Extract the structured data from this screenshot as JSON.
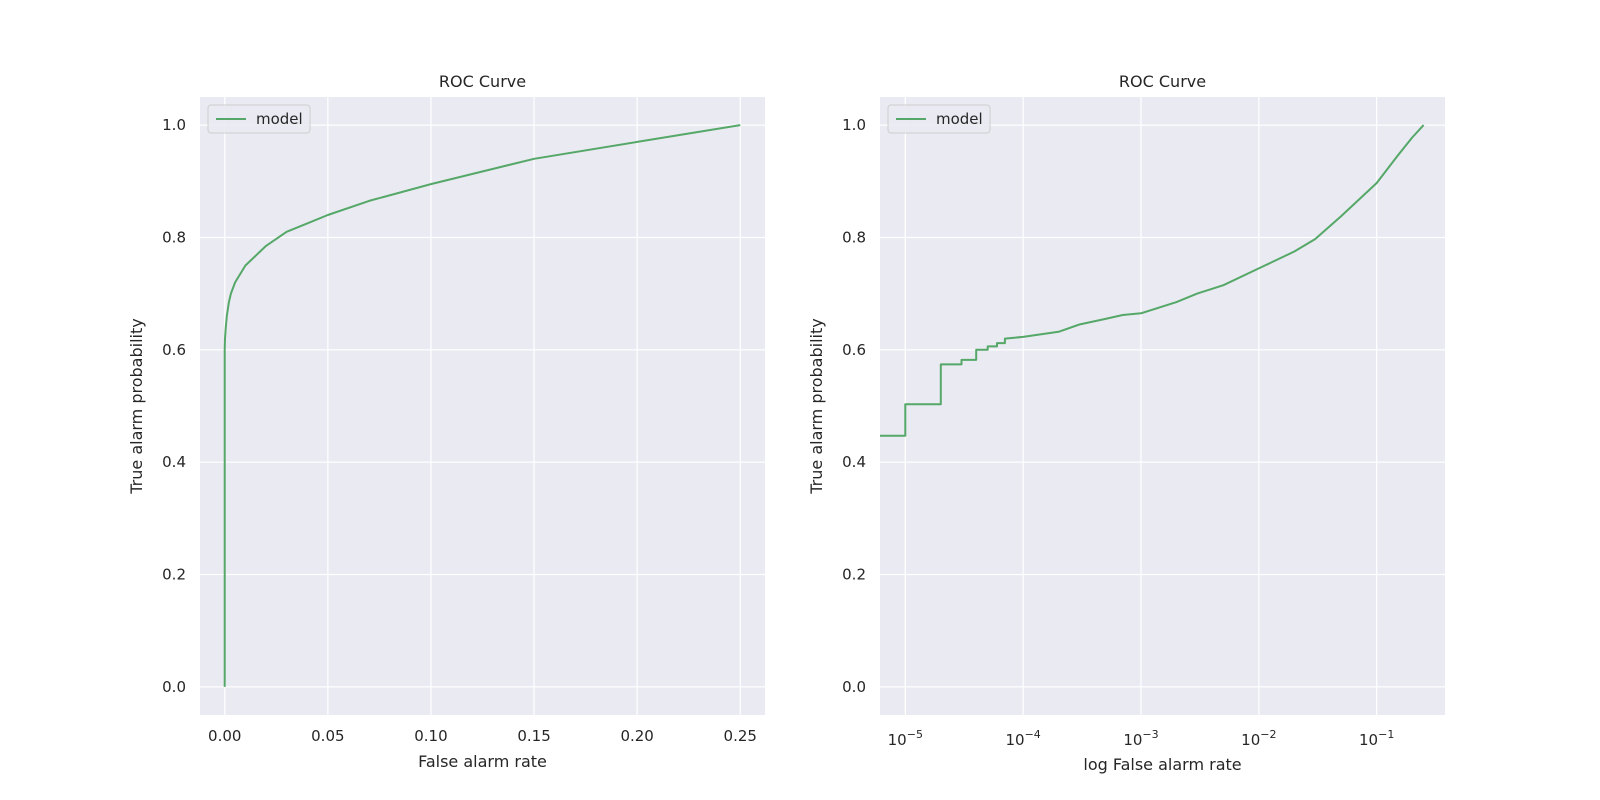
{
  "chart_data": [
    {
      "type": "line",
      "title": "ROC Curve",
      "xlabel": "False alarm rate",
      "ylabel": "True alarm probability",
      "xscale": "linear",
      "xlim": [
        -0.012,
        0.262
      ],
      "ylim": [
        -0.05,
        1.05
      ],
      "xticks": [
        0.0,
        0.05,
        0.1,
        0.15,
        0.2,
        0.25
      ],
      "xtick_labels": [
        "0.00",
        "0.05",
        "0.10",
        "0.15",
        "0.20",
        "0.25"
      ],
      "yticks": [
        0.0,
        0.2,
        0.4,
        0.6,
        0.8,
        1.0
      ],
      "ytick_labels": [
        "0.0",
        "0.2",
        "0.4",
        "0.6",
        "0.8",
        "1.0"
      ],
      "grid": true,
      "legend": "upper-left",
      "series": [
        {
          "name": "model",
          "color": "#55a868",
          "x": [
            0.0,
            0.0,
            0.0,
            0.0,
            0.0001,
            0.0005,
            0.001,
            0.002,
            0.003,
            0.005,
            0.01,
            0.02,
            0.03,
            0.04,
            0.05,
            0.07,
            0.1,
            0.15,
            0.2,
            0.25
          ],
          "y": [
            0.0,
            0.4,
            0.5,
            0.6,
            0.62,
            0.64,
            0.66,
            0.685,
            0.7,
            0.72,
            0.75,
            0.785,
            0.81,
            0.825,
            0.84,
            0.865,
            0.895,
            0.94,
            0.97,
            1.0
          ]
        }
      ]
    },
    {
      "type": "line",
      "title": "ROC Curve",
      "xlabel": "log False alarm rate",
      "ylabel": "True alarm probability",
      "xscale": "log",
      "xlim": [
        6.1e-06,
        0.38
      ],
      "ylim": [
        -0.05,
        1.05
      ],
      "xticks": [
        1e-05,
        0.0001,
        0.001,
        0.01,
        0.1
      ],
      "xtick_bases": [
        "10",
        "10",
        "10",
        "10",
        "10"
      ],
      "xtick_exponents": [
        "−5",
        "−4",
        "−3",
        "−2",
        "−1"
      ],
      "yticks": [
        0.0,
        0.2,
        0.4,
        0.6,
        0.8,
        1.0
      ],
      "ytick_labels": [
        "0.0",
        "0.2",
        "0.4",
        "0.6",
        "0.8",
        "1.0"
      ],
      "grid": true,
      "legend": "upper-left",
      "series": [
        {
          "name": "model",
          "color": "#55a868",
          "x": [
            6.1e-06,
            1e-05,
            1e-05,
            2e-05,
            2e-05,
            3e-05,
            3e-05,
            4e-05,
            4e-05,
            5e-05,
            5e-05,
            6e-05,
            6e-05,
            7e-05,
            7e-05,
            0.0001,
            0.0002,
            0.0003,
            0.0005,
            0.0007,
            0.001,
            0.002,
            0.003,
            0.005,
            0.01,
            0.02,
            0.03,
            0.05,
            0.1,
            0.15,
            0.2,
            0.25
          ],
          "y": [
            0.447,
            0.447,
            0.503,
            0.503,
            0.574,
            0.574,
            0.582,
            0.582,
            0.6,
            0.6,
            0.606,
            0.606,
            0.612,
            0.612,
            0.62,
            0.623,
            0.632,
            0.645,
            0.655,
            0.662,
            0.665,
            0.685,
            0.7,
            0.715,
            0.745,
            0.775,
            0.797,
            0.838,
            0.897,
            0.945,
            0.978,
            1.0
          ]
        }
      ]
    }
  ]
}
